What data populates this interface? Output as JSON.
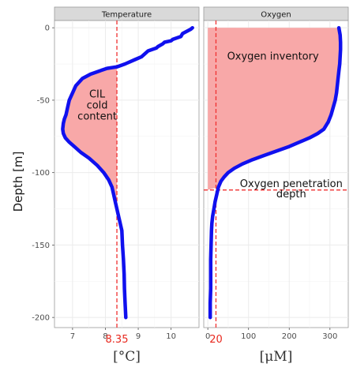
{
  "figure": {
    "ylabel": "Depth   [m]"
  },
  "chart_data": [
    {
      "type": "line",
      "facet_title": "Temperature",
      "xlabel": "[°C]",
      "xlim": [
        6.45,
        10.85
      ],
      "ylim": [
        -207,
        5
      ],
      "x_ticks": [
        7,
        8,
        9,
        10
      ],
      "y_ticks": [
        0,
        -50,
        -100,
        -150,
        -200
      ],
      "grid": true,
      "reference_line": {
        "axis": "x",
        "value": 8.35,
        "label": "8.35"
      },
      "annotation": "CIL\ncold\ncontent",
      "shaded_region": "between profile and x = 8.35, depth -27 to -119",
      "colors": {
        "line": "#1010ee",
        "fill": "#f8a8a8",
        "reference": "#f03030"
      },
      "series": [
        {
          "x": [
            10.65,
            10.6,
            10.35,
            10.3,
            10.05,
            10.0,
            9.8,
            9.75,
            9.6,
            9.55,
            9.3,
            9.2,
            9.1,
            8.9,
            8.6,
            8.35,
            8.05,
            7.8,
            7.55,
            7.3,
            7.1,
            7.0,
            6.9,
            6.85,
            6.8,
            6.75,
            6.72,
            6.7,
            6.72,
            6.78,
            6.9,
            7.05,
            7.25,
            7.5,
            7.75,
            7.95,
            8.1,
            8.2,
            8.25,
            8.3,
            8.35,
            8.4,
            8.45,
            8.5,
            8.52,
            8.55,
            8.57,
            8.58,
            8.6,
            8.62
          ],
          "y": [
            0,
            -1,
            -4,
            -6,
            -8,
            -9,
            -10,
            -11,
            -13,
            -14,
            -16,
            -18,
            -20,
            -22,
            -25,
            -27,
            -28,
            -30,
            -32,
            -35,
            -40,
            -45,
            -50,
            -55,
            -60,
            -63,
            -66,
            -70,
            -73,
            -76,
            -79,
            -82,
            -86,
            -90,
            -95,
            -100,
            -105,
            -110,
            -115,
            -120,
            -125,
            -130,
            -135,
            -140,
            -150,
            -160,
            -170,
            -180,
            -190,
            -200
          ]
        }
      ]
    },
    {
      "type": "line",
      "facet_title": "Oxygen",
      "xlabel": "[μM]",
      "xlim": [
        -10,
        345
      ],
      "ylim": [
        -207,
        5
      ],
      "x_ticks": [
        0,
        100,
        200,
        300
      ],
      "y_ticks": [
        0,
        -50,
        -100,
        -150,
        -200
      ],
      "grid": true,
      "reference_line": {
        "axis": "x",
        "value": 20,
        "label": "20"
      },
      "reference_line_2": {
        "axis": "y",
        "value": -112
      },
      "annotations": [
        "Oxygen inventory",
        "Oxygen penetration\ndepth"
      ],
      "shaded_region": "between x = 0 and profile, depth 0 to -112",
      "colors": {
        "line": "#1010ee",
        "fill": "#f8a8a8",
        "reference": "#f03030"
      },
      "series": [
        {
          "x": [
            322,
            325,
            326,
            326,
            325,
            324,
            322,
            320,
            318,
            316,
            313,
            308,
            303,
            296,
            285,
            270,
            250,
            225,
            200,
            170,
            140,
            110,
            85,
            65,
            50,
            40,
            32,
            26,
            22,
            18,
            15,
            12,
            10,
            9,
            8,
            7,
            7,
            7,
            6,
            6,
            6
          ],
          "y": [
            0,
            -5,
            -10,
            -15,
            -20,
            -25,
            -30,
            -35,
            -40,
            -45,
            -50,
            -55,
            -60,
            -65,
            -70,
            -73,
            -76,
            -79,
            -82,
            -85,
            -88,
            -91,
            -94,
            -97,
            -100,
            -103,
            -106,
            -110,
            -115,
            -120,
            -125,
            -130,
            -135,
            -140,
            -150,
            -160,
            -170,
            -180,
            -190,
            -195,
            -200
          ]
        }
      ]
    }
  ]
}
